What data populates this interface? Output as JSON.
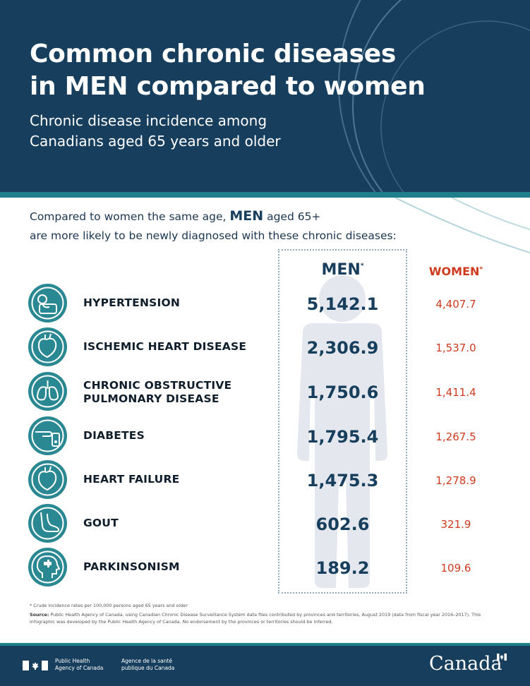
{
  "colors": {
    "header_bg": "#173f5d",
    "accent_teal": "#1f7f8b",
    "icon_bg": "#2a8892",
    "men_value": "#173f5d",
    "women_value": "#cf3a1e",
    "silhouette": "#e4e8ee"
  },
  "header": {
    "title_line1": "Common chronic diseases",
    "title_line2": "in MEN compared to women",
    "subtitle_line1": "Chronic disease incidence among",
    "subtitle_line2": "Canadians aged 65 years and older"
  },
  "intro": {
    "line1_before": "Compared to women the same age, ",
    "line1_men": "MEN",
    "line1_after": " aged 65+",
    "line2": "are more likely to be newly diagnosed with these chronic diseases:"
  },
  "columns": {
    "men": "MEN",
    "women": "WOMEN",
    "asterisk": "*"
  },
  "diseases": [
    {
      "icon": "blood-pressure-icon",
      "label_lines": [
        "HYPERTENSION"
      ],
      "men": "5,142.1",
      "women": "4,407.7"
    },
    {
      "icon": "heart-icon",
      "label_lines": [
        "ISCHEMIC HEART DISEASE"
      ],
      "men": "2,306.9",
      "women": "1,537.0"
    },
    {
      "icon": "lungs-icon",
      "label_lines": [
        "CHRONIC OBSTRUCTIVE",
        "PULMONARY DISEASE"
      ],
      "men": "1,750.6",
      "women": "1,411.4"
    },
    {
      "icon": "glucose-meter-icon",
      "label_lines": [
        "DIABETES"
      ],
      "men": "1,795.4",
      "women": "1,267.5"
    },
    {
      "icon": "heart-icon",
      "label_lines": [
        "HEART FAILURE"
      ],
      "men": "1,475.3",
      "women": "1,278.9"
    },
    {
      "icon": "foot-icon",
      "label_lines": [
        "GOUT"
      ],
      "men": "602.6",
      "women": "321.9"
    },
    {
      "icon": "head-puzzle-icon",
      "label_lines": [
        "PARKINSONISM"
      ],
      "men": "189.2",
      "women": "109.6"
    }
  ],
  "footnote": "* Crude incidence rates per 100,000 persons aged 65 years and older",
  "source": {
    "label": "Source:",
    "text": " Public Health Agency of Canada, using Canadian Chronic Disease Surveillance System data files contributed by provinces and territories, August 2019 (data from fiscal year 2016–2017). This infographic was developed by the Public Health Agency of Canada. No endorsement by the provinces or territories should be inferred."
  },
  "footer": {
    "agency_en_line1": "Public Health",
    "agency_en_line2": "Agency of Canada",
    "agency_fr_line1": "Agence de la santé",
    "agency_fr_line2": "publique du Canada",
    "wordmark": "Canada"
  }
}
